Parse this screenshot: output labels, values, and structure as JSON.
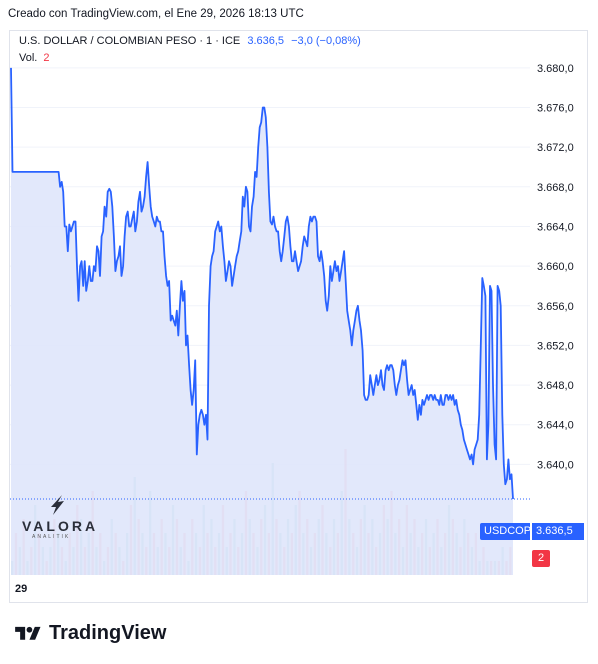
{
  "caption": "Creado con TradingView.com, el Ene 29, 2026 18:13 UTC",
  "legend": {
    "symbol": "U.S. DOLLAR / COLOMBIAN PESO · 1 · ICE",
    "price": "3.636,5",
    "change": "−3,0 (−0,08%)",
    "vol_label": "Vol.",
    "vol_value": "2"
  },
  "tags": {
    "symbol": "USDCOP",
    "price": "3.636,5",
    "volume": "2"
  },
  "logo": {
    "name": "VALORA",
    "sub": "ANALITIK"
  },
  "footer": {
    "brand": "TradingView"
  },
  "colors": {
    "line": "#2962ff",
    "fill": "#dfe6fb",
    "vol_up": "#26a69a",
    "vol_down": "#f23645"
  },
  "chart_data": {
    "type": "area",
    "x_tick_labels": [
      "29"
    ],
    "ylim": [
      3635.8,
      3681.6
    ],
    "y_ticks": [
      3640.0,
      3644.0,
      3648.0,
      3652.0,
      3656.0,
      3660.0,
      3664.0,
      3668.0,
      3672.0,
      3676.0,
      3680.0
    ],
    "y_tick_labels": [
      "3.640,0",
      "3.644,0",
      "3.648,0",
      "3.652,0",
      "3.656,0",
      "3.660,0",
      "3.664,0",
      "3.668,0",
      "3.672,0",
      "3.676,0",
      "3.680,0"
    ],
    "series": [
      {
        "values": [
          3680.0,
          3669.5,
          3669.5,
          3669.5,
          3669.5,
          3669.5,
          3669.5,
          3669.5,
          3669.5,
          3669.5,
          3669.5,
          3669.5,
          3669.5,
          3669.5,
          3669.5,
          3669.5,
          3669.5,
          3669.5,
          3669.5,
          3669.5,
          3669.5,
          3669.5,
          3669.5,
          3669.5,
          3669.5,
          3669.5,
          3669.5,
          3669.5,
          3669.5,
          3669.5,
          3669.5,
          3669.5,
          3668.0,
          3668.5,
          3667.5,
          3664.0,
          3664.0,
          3661.5,
          3664.2,
          3663.5,
          3664.0,
          3664.5,
          3664.5,
          3660.0,
          3656.5,
          3660.0,
          3660.5,
          3658.0,
          3660.5,
          3657.5,
          3658.5,
          3660.0,
          3658.5,
          3658.5,
          3660.0,
          3659.5,
          3662.0,
          3661.5,
          3659.0,
          3663.0,
          3663.5,
          3666.0,
          3665.0,
          3667.5,
          3667.8,
          3667.5,
          3666.0,
          3663.0,
          3659.5,
          3660.5,
          3661.0,
          3662.0,
          3659.0,
          3660.0,
          3663.0,
          3665.0,
          3665.5,
          3664.0,
          3664.0,
          3664.8,
          3665.5,
          3663.5,
          3664.5,
          3666.5,
          3667.5,
          3665.5,
          3666.0,
          3667.0,
          3669.0,
          3670.5,
          3668.0,
          3666.0,
          3665.0,
          3664.5,
          3664.0,
          3665.0,
          3664.5,
          3664.5,
          3663.5,
          3663.5,
          3661.0,
          3659.0,
          3658.0,
          3658.5,
          3654.5,
          3655.0,
          3654.5,
          3654.0,
          3655.5,
          3653.0,
          3656.0,
          3658.5,
          3656.5,
          3657.5,
          3652.0,
          3653.0,
          3650.0,
          3647.5,
          3646.0,
          3647.5,
          3650.5,
          3641.0,
          3644.0,
          3645.0,
          3645.5,
          3645.0,
          3644.0,
          3645.0,
          3642.5,
          3656.0,
          3660.0,
          3661.0,
          3661.5,
          3663.5,
          3664.0,
          3664.5,
          3663.5,
          3664.0,
          3662.0,
          3660.5,
          3658.5,
          3659.5,
          3660.5,
          3660.0,
          3658.0,
          3659.0,
          3660.0,
          3661.0,
          3661.5,
          3662.5,
          3663.5,
          3667.0,
          3666.0,
          3668.0,
          3667.5,
          3664.0,
          3663.5,
          3666.0,
          3667.0,
          3669.5,
          3669.0,
          3672.0,
          3674.0,
          3674.5,
          3676.0,
          3676.0,
          3675.0,
          3672.0,
          3667.5,
          3664.5,
          3664.2,
          3665.0,
          3664.0,
          3663.5,
          3663.5,
          3661.5,
          3660.5,
          3661.5,
          3663.0,
          3664.5,
          3665.0,
          3664.0,
          3662.0,
          3660.5,
          3660.5,
          3661.5,
          3660.5,
          3659.5,
          3660.0,
          3660.5,
          3662.0,
          3663.0,
          3662.5,
          3662.0,
          3664.0,
          3665.0,
          3664.5,
          3665.0,
          3665.0,
          3664.5,
          3661.0,
          3660.5,
          3661.5,
          3660.5,
          3659.0,
          3656.5,
          3655.5,
          3657.0,
          3660.0,
          3658.5,
          3659.5,
          3660.5,
          3659.5,
          3660.0,
          3658.5,
          3659.5,
          3660.5,
          3661.5,
          3658.5,
          3655.5,
          3654.5,
          3653.5,
          3652.0,
          3653.5,
          3654.5,
          3655.5,
          3656.0,
          3654.5,
          3653.5,
          3651.5,
          3647.0,
          3646.5,
          3646.5,
          3647.0,
          3649.0,
          3648.0,
          3647.0,
          3648.0,
          3649.0,
          3648.0,
          3648.5,
          3649.5,
          3648.0,
          3647.5,
          3649.5,
          3650.0,
          3649.5,
          3650.0,
          3650.0,
          3649.5,
          3648.0,
          3647.0,
          3648.0,
          3648.5,
          3649.5,
          3650.5,
          3650.0,
          3650.5,
          3648.5,
          3647.0,
          3647.5,
          3648.0,
          3647.0,
          3647.5,
          3646.0,
          3644.5,
          3646.0,
          3645.0,
          3646.5,
          3646.0,
          3646.5,
          3647.0,
          3646.5,
          3647.0,
          3647.0,
          3646.5,
          3647.0,
          3646.5,
          3646.5,
          3646.0,
          3647.0,
          3646.0,
          3646.0,
          3647.0,
          3647.0,
          3646.5,
          3647.0,
          3646.5,
          3647.0,
          3646.0,
          3646.5,
          3645.5,
          3645.0,
          3644.0,
          3643.5,
          3642.5,
          3642.0,
          3641.5,
          3641.0,
          3640.5,
          3641.0,
          3640.0,
          3641.5,
          3642.0,
          3642.5,
          3645.0,
          3652.0,
          3658.8,
          3658.0,
          3657.0,
          3640.5,
          3644.0,
          3658.0,
          3657.5,
          3648.0,
          3642.0,
          3640.5,
          3658.0,
          3657.5,
          3656.0,
          3645.0,
          3640.0,
          3638.0,
          3638.5,
          3640.5,
          3638.5,
          3639.0,
          3636.5
        ]
      }
    ],
    "volume": [
      {
        "v": 1,
        "c": "up"
      },
      {
        "v": 3,
        "c": "down"
      },
      {
        "v": 2,
        "c": "up"
      },
      {
        "v": 4,
        "c": "down"
      },
      {
        "v": 1,
        "c": "up"
      },
      {
        "v": 2,
        "c": "down"
      },
      {
        "v": 5,
        "c": "up"
      },
      {
        "v": 3,
        "c": "down"
      },
      {
        "v": 2,
        "c": "up"
      },
      {
        "v": 1,
        "c": "down"
      },
      {
        "v": 2,
        "c": "up"
      },
      {
        "v": 4,
        "c": "down"
      },
      {
        "v": 3,
        "c": "up"
      },
      {
        "v": 2,
        "c": "down"
      },
      {
        "v": 1,
        "c": "up"
      },
      {
        "v": 3,
        "c": "down"
      },
      {
        "v": 2,
        "c": "up"
      },
      {
        "v": 5,
        "c": "down"
      },
      {
        "v": 4,
        "c": "up"
      },
      {
        "v": 2,
        "c": "down"
      },
      {
        "v": 3,
        "c": "up"
      },
      {
        "v": 6,
        "c": "down"
      },
      {
        "v": 2,
        "c": "up"
      },
      {
        "v": 3,
        "c": "down"
      },
      {
        "v": 1,
        "c": "up"
      },
      {
        "v": 2,
        "c": "down"
      },
      {
        "v": 4,
        "c": "up"
      },
      {
        "v": 3,
        "c": "down"
      },
      {
        "v": 2,
        "c": "up"
      },
      {
        "v": 1,
        "c": "down"
      },
      {
        "v": 3,
        "c": "up"
      },
      {
        "v": 5,
        "c": "down"
      },
      {
        "v": 7,
        "c": "up"
      },
      {
        "v": 4,
        "c": "down"
      },
      {
        "v": 3,
        "c": "up"
      },
      {
        "v": 2,
        "c": "down"
      },
      {
        "v": 6,
        "c": "up"
      },
      {
        "v": 3,
        "c": "down"
      },
      {
        "v": 2,
        "c": "up"
      },
      {
        "v": 4,
        "c": "down"
      },
      {
        "v": 3,
        "c": "up"
      },
      {
        "v": 2,
        "c": "down"
      },
      {
        "v": 5,
        "c": "up"
      },
      {
        "v": 4,
        "c": "down"
      },
      {
        "v": 2,
        "c": "up"
      },
      {
        "v": 3,
        "c": "down"
      },
      {
        "v": 1,
        "c": "up"
      },
      {
        "v": 4,
        "c": "down"
      },
      {
        "v": 3,
        "c": "up"
      },
      {
        "v": 2,
        "c": "down"
      },
      {
        "v": 5,
        "c": "up"
      },
      {
        "v": 3,
        "c": "down"
      },
      {
        "v": 4,
        "c": "up"
      },
      {
        "v": 2,
        "c": "down"
      },
      {
        "v": 3,
        "c": "up"
      },
      {
        "v": 5,
        "c": "down"
      },
      {
        "v": 2,
        "c": "up"
      },
      {
        "v": 3,
        "c": "down"
      },
      {
        "v": 4,
        "c": "up"
      },
      {
        "v": 2,
        "c": "down"
      },
      {
        "v": 3,
        "c": "up"
      },
      {
        "v": 6,
        "c": "down"
      },
      {
        "v": 4,
        "c": "up"
      },
      {
        "v": 3,
        "c": "down"
      },
      {
        "v": 2,
        "c": "up"
      },
      {
        "v": 4,
        "c": "down"
      },
      {
        "v": 5,
        "c": "up"
      },
      {
        "v": 3,
        "c": "down"
      },
      {
        "v": 8,
        "c": "up"
      },
      {
        "v": 4,
        "c": "down"
      },
      {
        "v": 3,
        "c": "up"
      },
      {
        "v": 2,
        "c": "down"
      },
      {
        "v": 4,
        "c": "up"
      },
      {
        "v": 3,
        "c": "down"
      },
      {
        "v": 5,
        "c": "up"
      },
      {
        "v": 6,
        "c": "down"
      },
      {
        "v": 3,
        "c": "up"
      },
      {
        "v": 4,
        "c": "down"
      },
      {
        "v": 2,
        "c": "up"
      },
      {
        "v": 3,
        "c": "down"
      },
      {
        "v": 4,
        "c": "up"
      },
      {
        "v": 5,
        "c": "down"
      },
      {
        "v": 3,
        "c": "up"
      },
      {
        "v": 2,
        "c": "down"
      },
      {
        "v": 4,
        "c": "up"
      },
      {
        "v": 3,
        "c": "down"
      },
      {
        "v": 6,
        "c": "up"
      },
      {
        "v": 9,
        "c": "down"
      },
      {
        "v": 4,
        "c": "up"
      },
      {
        "v": 3,
        "c": "down"
      },
      {
        "v": 2,
        "c": "up"
      },
      {
        "v": 4,
        "c": "down"
      },
      {
        "v": 5,
        "c": "up"
      },
      {
        "v": 3,
        "c": "down"
      },
      {
        "v": 4,
        "c": "up"
      },
      {
        "v": 2,
        "c": "down"
      },
      {
        "v": 3,
        "c": "up"
      },
      {
        "v": 5,
        "c": "down"
      },
      {
        "v": 4,
        "c": "up"
      },
      {
        "v": 6,
        "c": "down"
      },
      {
        "v": 3,
        "c": "up"
      },
      {
        "v": 4,
        "c": "down"
      },
      {
        "v": 2,
        "c": "up"
      },
      {
        "v": 5,
        "c": "down"
      },
      {
        "v": 3,
        "c": "up"
      },
      {
        "v": 4,
        "c": "down"
      },
      {
        "v": 2,
        "c": "up"
      },
      {
        "v": 3,
        "c": "down"
      },
      {
        "v": 4,
        "c": "up"
      },
      {
        "v": 2,
        "c": "down"
      },
      {
        "v": 3,
        "c": "up"
      },
      {
        "v": 4,
        "c": "down"
      },
      {
        "v": 2,
        "c": "up"
      },
      {
        "v": 3,
        "c": "down"
      },
      {
        "v": 5,
        "c": "up"
      },
      {
        "v": 4,
        "c": "down"
      },
      {
        "v": 3,
        "c": "up"
      },
      {
        "v": 2,
        "c": "down"
      },
      {
        "v": 4,
        "c": "up"
      },
      {
        "v": 3,
        "c": "down"
      },
      {
        "v": 2,
        "c": "up"
      },
      {
        "v": 3,
        "c": "down"
      },
      {
        "v": 1,
        "c": "up"
      },
      {
        "v": 2,
        "c": "down"
      },
      {
        "v": 1,
        "c": "up"
      },
      {
        "v": 1,
        "c": "down"
      },
      {
        "v": 1,
        "c": "up"
      },
      {
        "v": 1,
        "c": "down"
      },
      {
        "v": 2,
        "c": "up"
      },
      {
        "v": 1,
        "c": "down"
      },
      {
        "v": 2,
        "c": "down"
      }
    ]
  }
}
